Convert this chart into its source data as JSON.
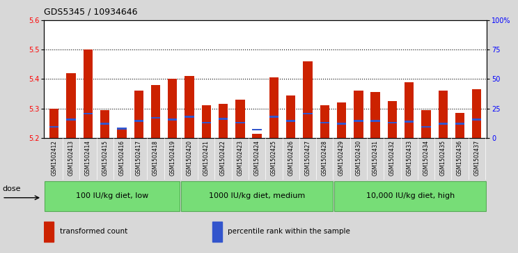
{
  "title": "GDS5345 / 10934646",
  "samples": [
    "GSM1502412",
    "GSM1502413",
    "GSM1502414",
    "GSM1502415",
    "GSM1502416",
    "GSM1502417",
    "GSM1502418",
    "GSM1502419",
    "GSM1502420",
    "GSM1502421",
    "GSM1502422",
    "GSM1502423",
    "GSM1502424",
    "GSM1502425",
    "GSM1502426",
    "GSM1502427",
    "GSM1502428",
    "GSM1502429",
    "GSM1502430",
    "GSM1502431",
    "GSM1502432",
    "GSM1502433",
    "GSM1502434",
    "GSM1502435",
    "GSM1502436",
    "GSM1502437"
  ],
  "bar_tops": [
    5.3,
    5.42,
    5.5,
    5.295,
    5.235,
    5.36,
    5.38,
    5.4,
    5.41,
    5.31,
    5.315,
    5.33,
    5.215,
    5.405,
    5.345,
    5.46,
    5.31,
    5.32,
    5.36,
    5.355,
    5.325,
    5.39,
    5.295,
    5.36,
    5.285,
    5.365
  ],
  "bar_base": 5.2,
  "blue_positions": [
    5.238,
    5.262,
    5.282,
    5.248,
    5.232,
    5.258,
    5.268,
    5.262,
    5.272,
    5.252,
    5.265,
    5.252,
    5.228,
    5.272,
    5.258,
    5.282,
    5.252,
    5.248,
    5.258,
    5.258,
    5.252,
    5.255,
    5.238,
    5.248,
    5.248,
    5.262
  ],
  "ylim_left": [
    5.2,
    5.6
  ],
  "ylim_right": [
    0,
    100
  ],
  "yticks_left": [
    5.2,
    5.3,
    5.4,
    5.5,
    5.6
  ],
  "yticks_right": [
    0,
    25,
    50,
    75,
    100
  ],
  "ytick_labels_right": [
    "0",
    "25",
    "50",
    "75",
    "100%"
  ],
  "bar_color": "#cc2200",
  "blue_color": "#3355cc",
  "bg_color": "#d8d8d8",
  "plot_bg": "#ffffff",
  "xtick_bg": "#cccccc",
  "group_labels": [
    "100 IU/kg diet, low",
    "1000 IU/kg diet, medium",
    "10,000 IU/kg diet, high"
  ],
  "group_counts": [
    8,
    9,
    9
  ],
  "group_color": "#77dd77",
  "group_border": "#55aa55",
  "legend_items": [
    "transformed count",
    "percentile rank within the sample"
  ],
  "legend_colors": [
    "#cc2200",
    "#3355cc"
  ],
  "dose_label": "dose",
  "title_fontsize": 9,
  "tick_fontsize": 7,
  "xtick_fontsize": 5.5,
  "group_fontsize": 8,
  "legend_fontsize": 7.5
}
